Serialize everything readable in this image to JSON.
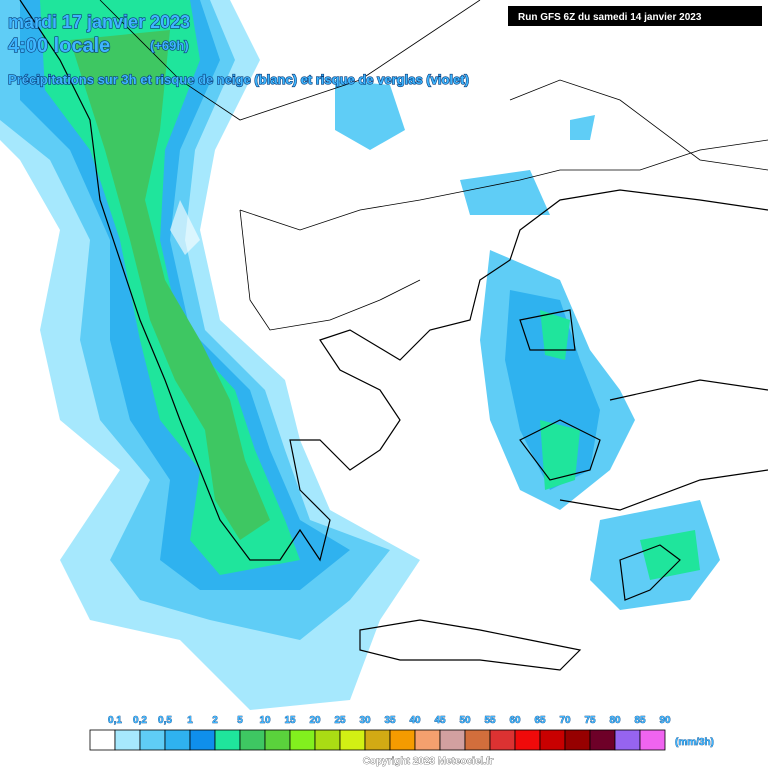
{
  "header": {
    "title": "mardi 17 janvier 2023",
    "time": "4:00 locale",
    "offset": "(+69h)",
    "subtitle": "Précipitations sur 3h et risque de neige (blanc) et risque de verglas (violet)",
    "run": "Run GFS 6Z du samedi 14 janvier 2023"
  },
  "legend": {
    "unit": "(mm/3h)",
    "items": [
      {
        "label": "0,1",
        "color": "#ffffff"
      },
      {
        "label": "0,2",
        "color": "#a6e8fd"
      },
      {
        "label": "0,5",
        "color": "#5fcdf6"
      },
      {
        "label": "1",
        "color": "#2fb2ef"
      },
      {
        "label": "2",
        "color": "#0f8fec"
      },
      {
        "label": "5",
        "color": "#1fe59c"
      },
      {
        "label": "10",
        "color": "#3ec762"
      },
      {
        "label": "15",
        "color": "#5ad23c"
      },
      {
        "label": "20",
        "color": "#82f01e"
      },
      {
        "label": "25",
        "color": "#aadc14"
      },
      {
        "label": "30",
        "color": "#d2f014"
      },
      {
        "label": "35",
        "color": "#d2aa14"
      },
      {
        "label": "40",
        "color": "#f59b00"
      },
      {
        "label": "45",
        "color": "#f5a06e"
      },
      {
        "label": "50",
        "color": "#d2a0a0"
      },
      {
        "label": "55",
        "color": "#d26e3c"
      },
      {
        "label": "60",
        "color": "#dc3232"
      },
      {
        "label": "65",
        "color": "#f00a0a"
      },
      {
        "label": "70",
        "color": "#c80000"
      },
      {
        "label": "75",
        "color": "#960000"
      },
      {
        "label": "80",
        "color": "#6e0028"
      },
      {
        "label": "85",
        "color": "#9664f0"
      },
      {
        "label": "90",
        "color": "#f064f0"
      }
    ]
  },
  "footer": {
    "copyright": "Copyright 2023 Meteociel.fr"
  }
}
